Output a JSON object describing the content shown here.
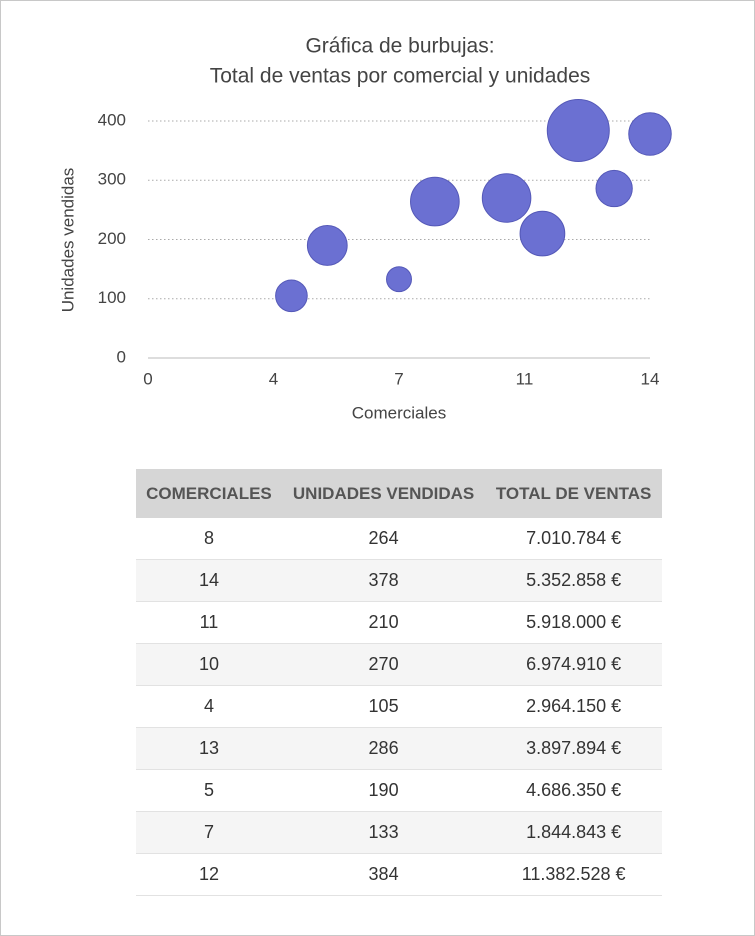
{
  "chart_data": {
    "type": "bubble",
    "title_lines": [
      "Gráfica de burbujas:",
      "Total de ventas por comercial y unidades"
    ],
    "x_label": "Comerciales",
    "y_label": "Unidades vendidas",
    "series": [
      {
        "color": "#6b70d2",
        "x": [
          8,
          14,
          11,
          10,
          4,
          13,
          5,
          7,
          12
        ],
        "values": [
          264,
          378,
          210,
          270,
          105,
          286,
          190,
          133,
          384
        ],
        "sizes": [
          7010784,
          5352858,
          5918000,
          6974910,
          2964150,
          3897894,
          4686350,
          1844843,
          11382528
        ]
      }
    ],
    "xlim": [
      0,
      14
    ],
    "xticks": [
      0,
      {
        "value": 3.5,
        "label": "4"
      },
      7,
      {
        "value": 10.5,
        "label": "11"
      },
      14
    ],
    "ylim": [
      0,
      400
    ],
    "yticks": [
      0,
      100,
      200,
      300,
      400
    ],
    "grid": true
  },
  "table": {
    "header": [
      "COMERCIALES",
      "UNIDADES VENDIDAS",
      "TOTAL DE VENTAS"
    ],
    "rows": [
      [
        "8",
        "264",
        "7.010.784 €"
      ],
      [
        "14",
        "378",
        "5.352.858 €"
      ],
      [
        "11",
        "210",
        "5.918.000 €"
      ],
      [
        "10",
        "270",
        "6.974.910 €"
      ],
      [
        "4",
        "105",
        "2.964.150 €"
      ],
      [
        "13",
        "286",
        "3.897.894 €"
      ],
      [
        "5",
        "190",
        "4.686.350 €"
      ],
      [
        "7",
        "133",
        "1.844.843 €"
      ],
      [
        "12",
        "384",
        "11.382.528 €"
      ]
    ]
  }
}
